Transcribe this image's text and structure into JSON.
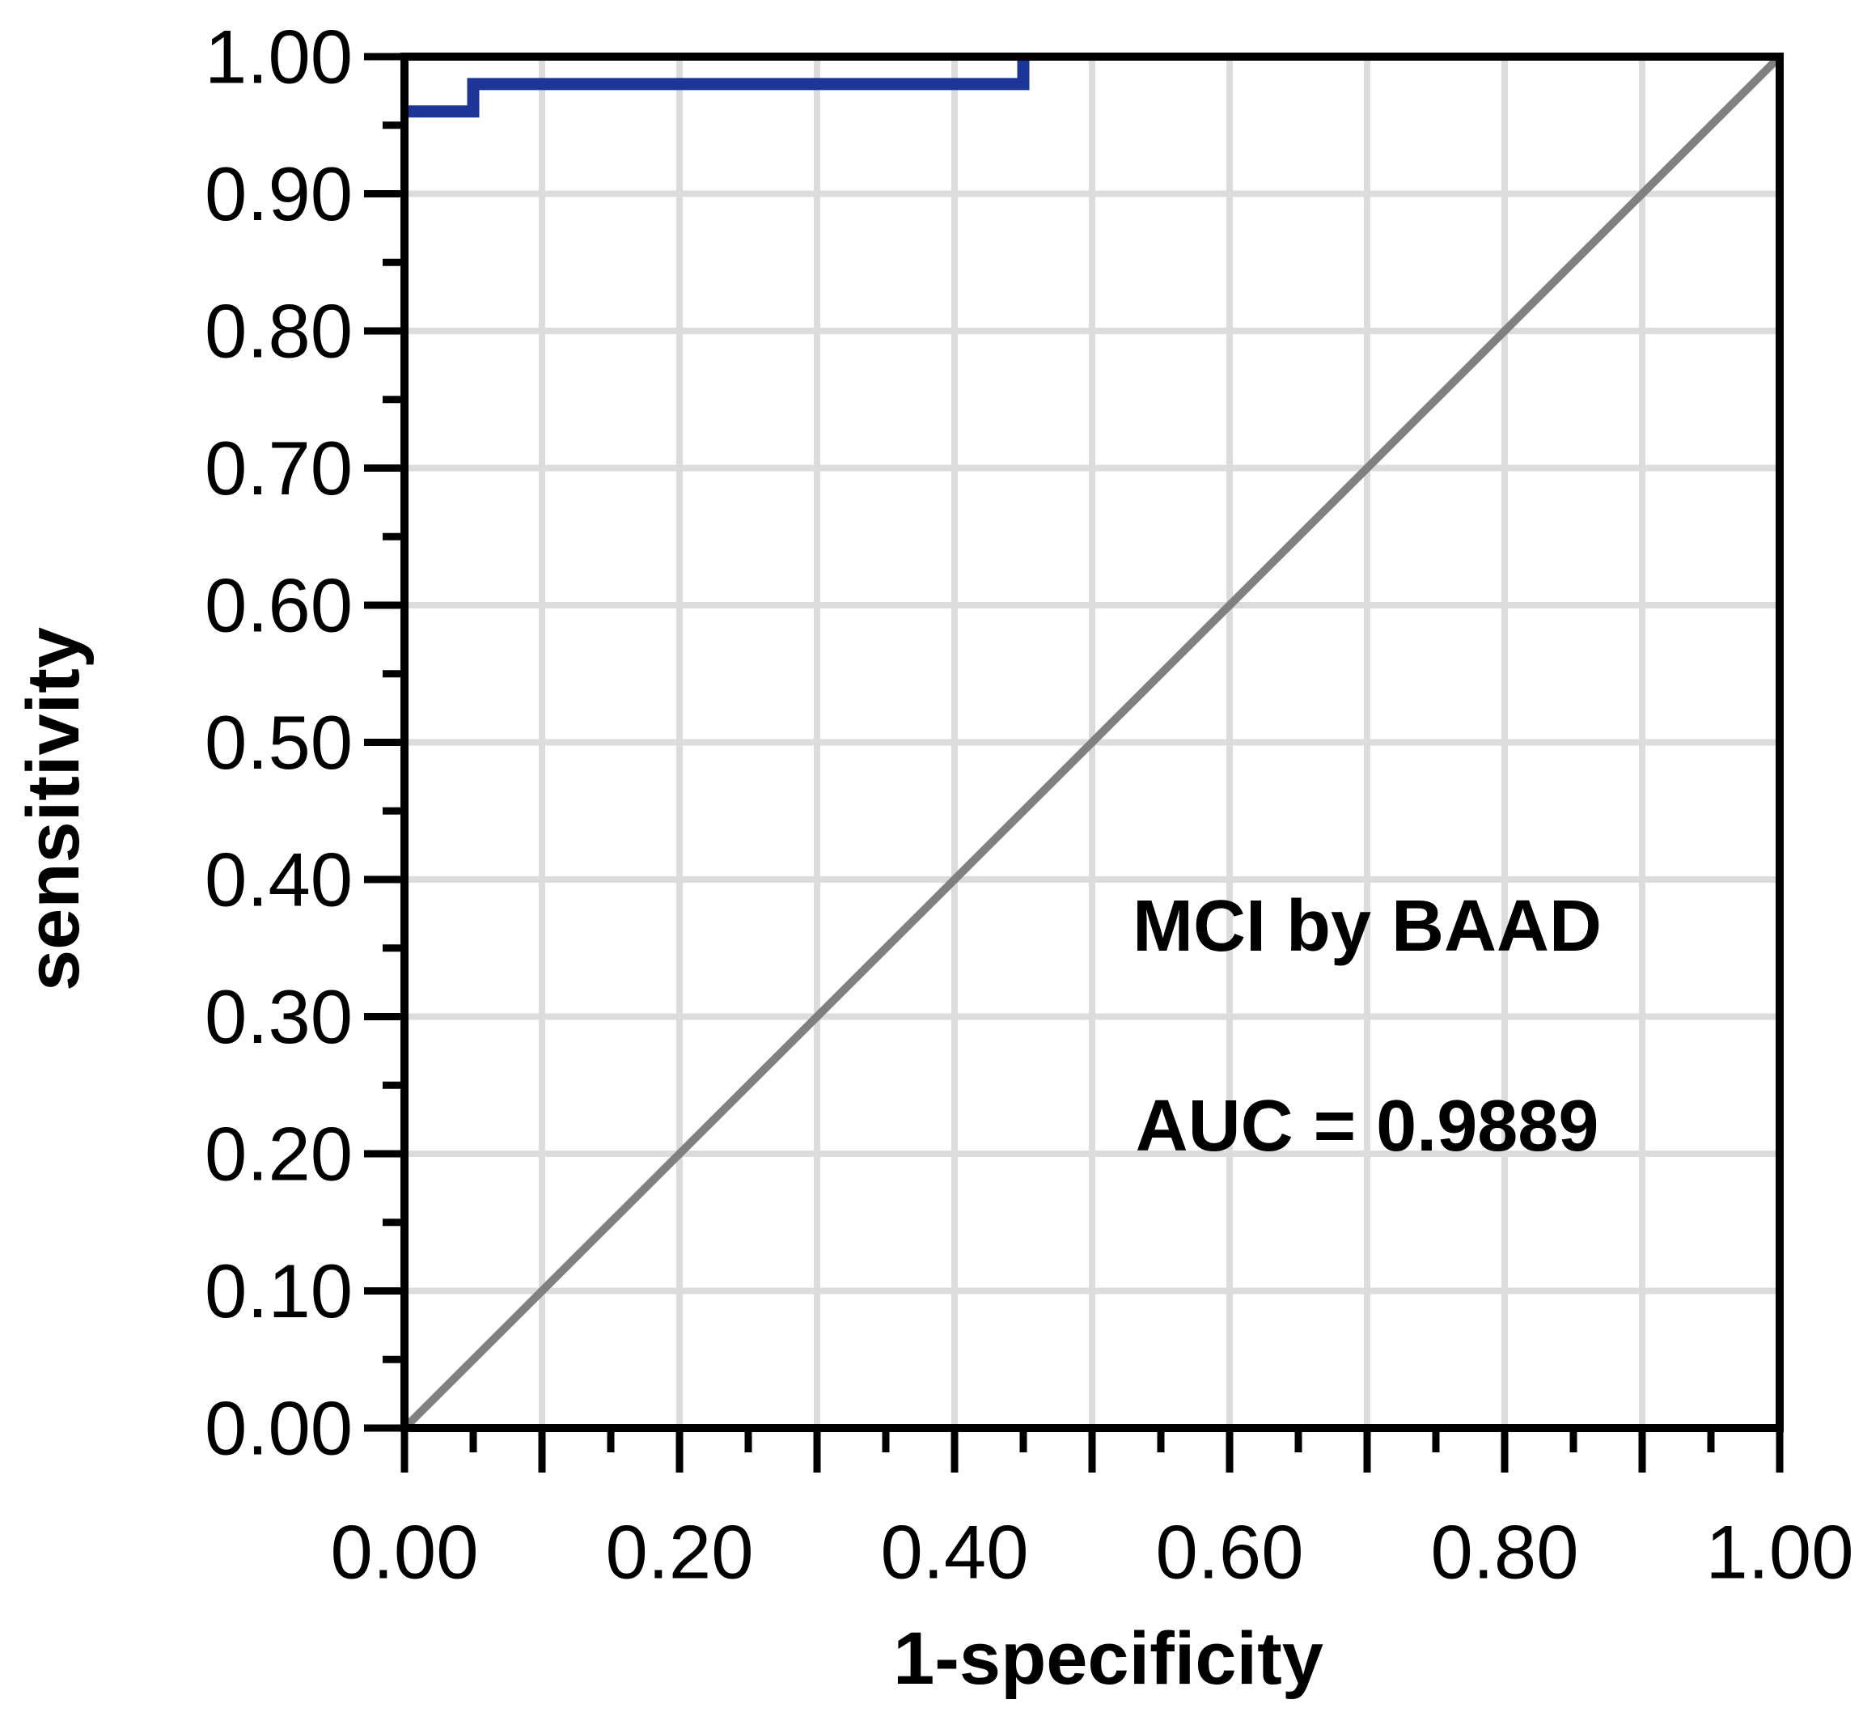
{
  "chart_data": {
    "type": "line",
    "subtype": "roc_step_curve",
    "title": "",
    "xlabel": "1-specificity",
    "ylabel": "sensitivity",
    "xlim": [
      0.0,
      1.0
    ],
    "ylim": [
      0.0,
      1.0
    ],
    "grid": true,
    "grid_step": 0.1,
    "x_major_tick_step": 0.1,
    "x_minor_tick_step": 0.05,
    "y_major_tick_step": 0.1,
    "y_minor_tick_step": 0.05,
    "x_tick_values": [
      0.0,
      0.2,
      0.4,
      0.6,
      0.8,
      1.0
    ],
    "x_tick_labels": [
      "0.00",
      "0.20",
      "0.40",
      "0.60",
      "0.80",
      "1.00"
    ],
    "y_tick_values": [
      0.0,
      0.1,
      0.2,
      0.3,
      0.4,
      0.5,
      0.6,
      0.7,
      0.8,
      0.9,
      1.0
    ],
    "y_tick_labels": [
      "0.00",
      "0.10",
      "0.20",
      "0.30",
      "0.40",
      "0.50",
      "0.60",
      "0.70",
      "0.80",
      "0.90",
      "1.00"
    ],
    "legend_position": "none",
    "series": [
      {
        "name": "ROC curve (MCI by BAAD)",
        "color": "#1c3596",
        "points": [
          [
            0.0,
            0.96
          ],
          [
            0.05,
            0.96
          ],
          [
            0.05,
            0.98
          ],
          [
            0.45,
            0.98
          ],
          [
            0.45,
            1.0
          ],
          [
            1.0,
            1.0
          ]
        ]
      }
    ],
    "reference_line": {
      "name": "chance diagonal",
      "color": "#808080",
      "from": [
        0.0,
        0.0
      ],
      "to": [
        1.0,
        1.0
      ]
    },
    "annotation": {
      "line1": "MCI by BAAD",
      "line2": "AUC = 0.9889",
      "auc": 0.9889,
      "position_data_coords": [
        0.7,
        0.37
      ]
    }
  },
  "colors": {
    "background": "#ffffff",
    "axis": "#000000",
    "grid": "#dcdcdc",
    "curve": "#1c3596",
    "diagonal": "#808080",
    "text": "#000000"
  }
}
